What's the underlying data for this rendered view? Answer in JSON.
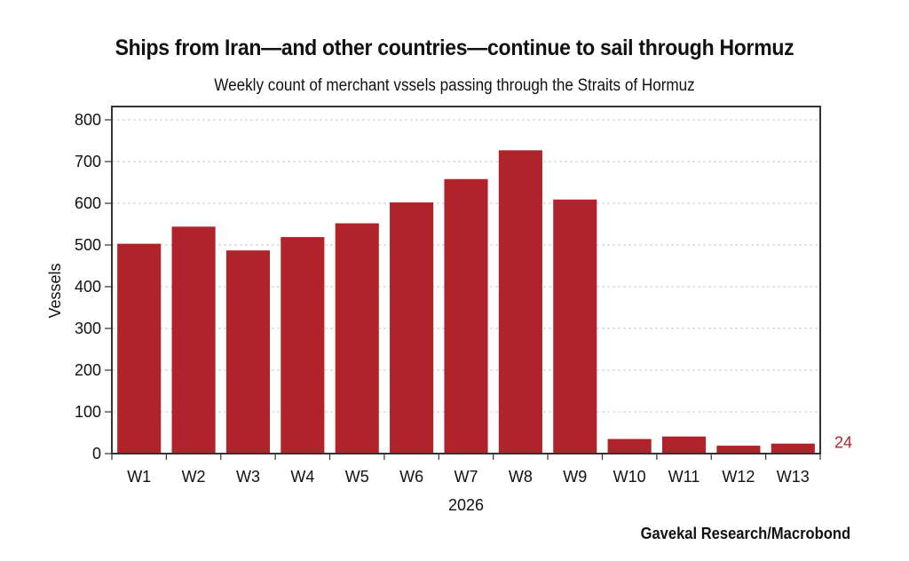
{
  "chart_data": {
    "type": "bar",
    "title": "Ships from Iran—and other countries—continue to sail through Hormuz",
    "subtitle": "Weekly count of merchant vssels passing through the Straits of Hormuz",
    "xlabel": "2026",
    "ylabel": "Vessels",
    "ylim": [
      0,
      800
    ],
    "yticks": [
      0,
      100,
      200,
      300,
      400,
      500,
      600,
      700,
      800
    ],
    "grid": true,
    "categories": [
      "W1",
      "W2",
      "W3",
      "W4",
      "W5",
      "W6",
      "W7",
      "W8",
      "W9",
      "W10",
      "W11",
      "W12",
      "W13"
    ],
    "series": [
      {
        "name": "Vessels",
        "color": "#b0232a",
        "values": [
          503,
          544,
          487,
          519,
          552,
          602,
          658,
          727,
          609,
          35,
          41,
          19,
          24
        ]
      }
    ],
    "annotations": [
      {
        "text": "24",
        "category": "W13",
        "color": "#b0232a",
        "position": "right-of-last-bar"
      }
    ],
    "source": "Gavekal Research/Macrobond"
  }
}
